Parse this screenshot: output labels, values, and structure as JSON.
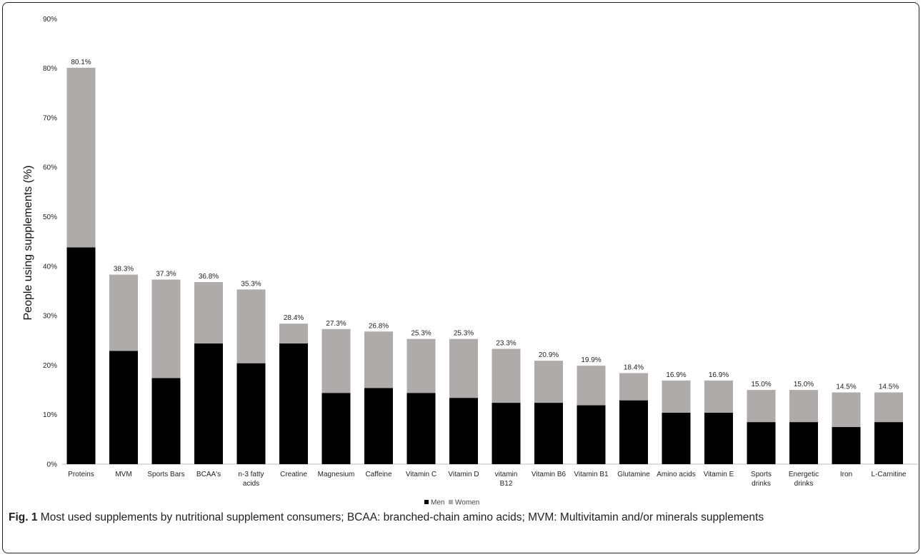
{
  "chart_data": {
    "type": "bar",
    "stacked": true,
    "ylabel": "People using supplements (%)",
    "xlabel": "",
    "ylim": [
      0,
      90
    ],
    "yticks": [
      "0%",
      "10%",
      "20%",
      "30%",
      "40%",
      "50%",
      "60%",
      "70%",
      "80%",
      "90%"
    ],
    "grid": false,
    "legend_position": "bottom",
    "categories": [
      [
        "Proteins"
      ],
      [
        "MVM"
      ],
      [
        "Sports  Bars"
      ],
      [
        "BCAA's"
      ],
      [
        "n-3 fatty",
        "acids"
      ],
      [
        "Creatine"
      ],
      [
        "Magnesium"
      ],
      [
        "Caffeine"
      ],
      [
        "Vitamin C"
      ],
      [
        "Vitamin D"
      ],
      [
        "vitamin",
        "B12"
      ],
      [
        "Vitamin B6"
      ],
      [
        "Vitamin B1"
      ],
      [
        "Glutamine"
      ],
      [
        "Amino acids"
      ],
      [
        "Vitamin E"
      ],
      [
        "Sports",
        "drinks"
      ],
      [
        "Energetic",
        "drinks"
      ],
      [
        "Iron"
      ],
      [
        "L-Carnitine"
      ]
    ],
    "totals": [
      "80.1%",
      "38.3%",
      "37.3%",
      "36.8%",
      "35.3%",
      "28.4%",
      "27.3%",
      "26.8%",
      "25.3%",
      "25.3%",
      "23.3%",
      "20.9%",
      "19.9%",
      "18.4%",
      "16.9%",
      "16.9%",
      "15.0%",
      "15.0%",
      "14.5%",
      "14.5%"
    ],
    "series": [
      {
        "name": "Men",
        "color": "#000000",
        "values": [
          43.8,
          22.9,
          17.4,
          24.4,
          20.4,
          24.4,
          14.4,
          15.4,
          14.4,
          13.4,
          12.4,
          12.4,
          11.9,
          12.9,
          10.4,
          10.4,
          8.5,
          8.5,
          7.5,
          8.5
        ]
      },
      {
        "name": "Women",
        "color": "#afabab",
        "values": [
          36.3,
          15.4,
          19.9,
          12.4,
          14.9,
          4.0,
          12.9,
          11.4,
          10.9,
          11.9,
          10.9,
          8.5,
          8.0,
          5.5,
          6.5,
          6.5,
          6.5,
          6.5,
          7.0,
          6.0
        ]
      }
    ]
  },
  "caption": {
    "label": "Fig. 1",
    "text": "Most used supplements by nutritional supplement consumers; BCAA: branched-chain amino acids; MVM: Multivitamin and/or minerals supplements"
  }
}
